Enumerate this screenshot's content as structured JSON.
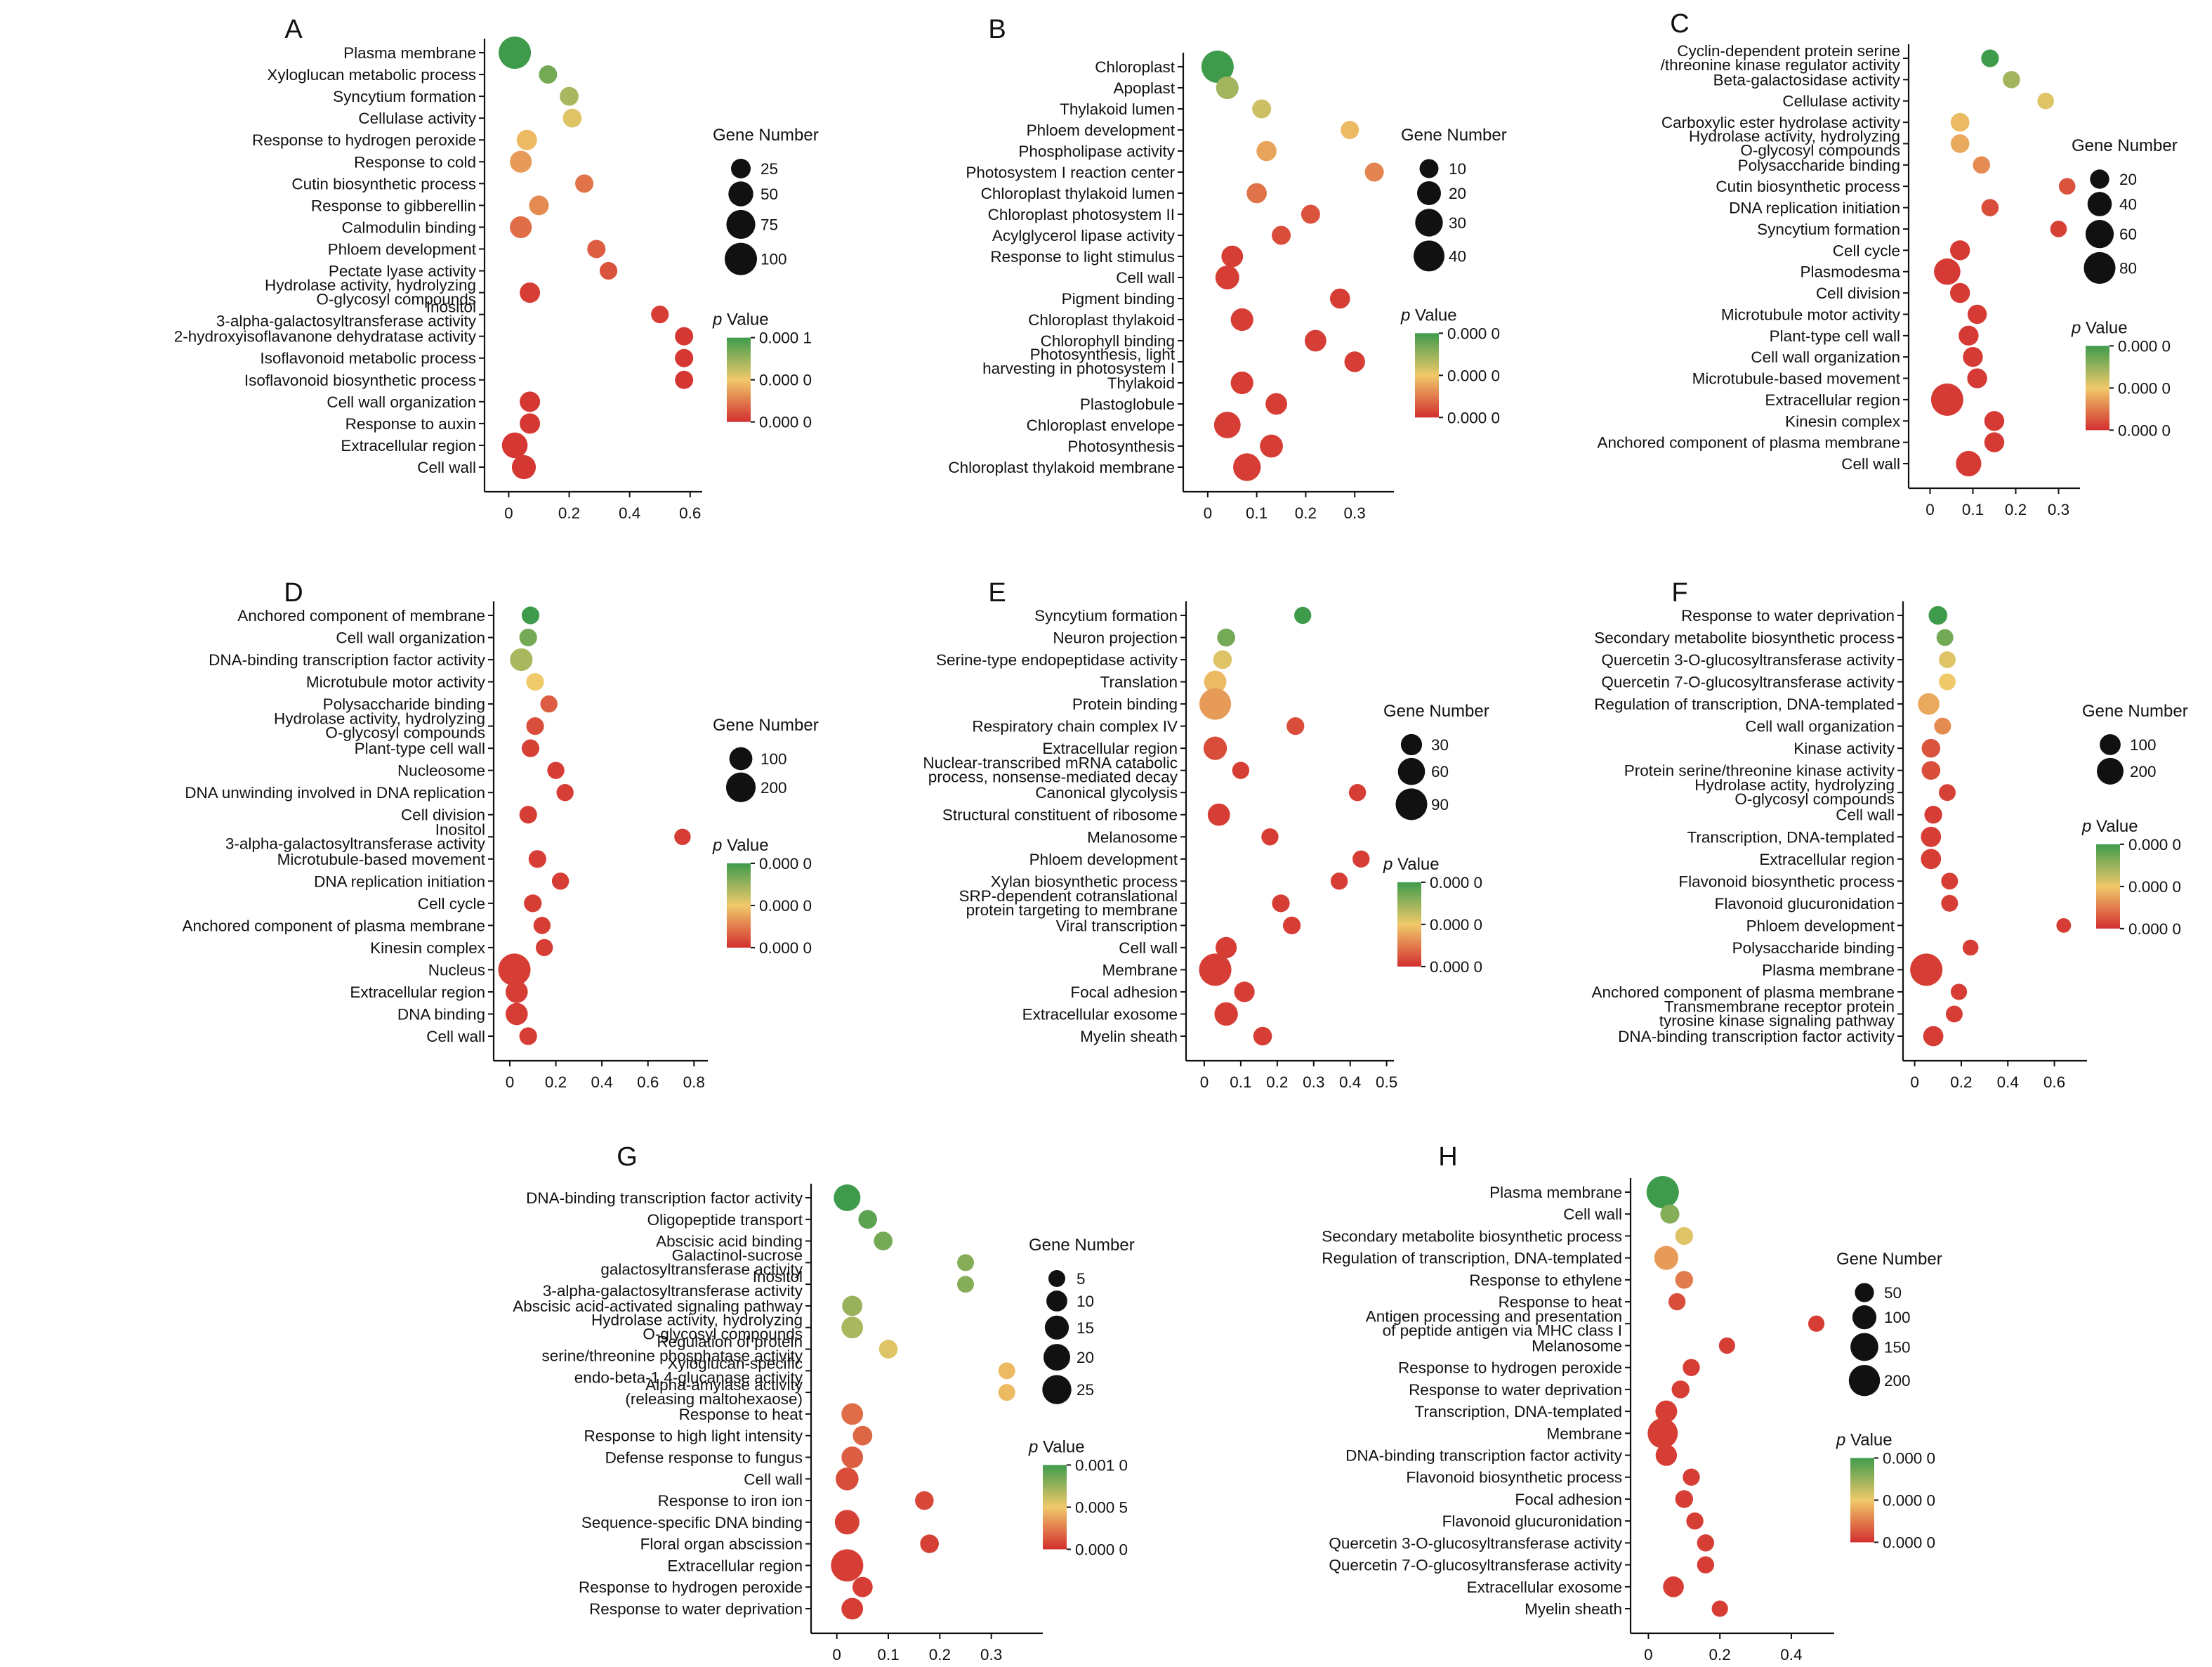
{
  "figure": {
    "colors": {
      "low_p": "#d32f2f",
      "mid_p": "#f0c96a",
      "high_p": "#3f9b4c",
      "axis": "#111111"
    },
    "legend_size_title": "Gene Number",
    "legend_p_prefix": "p",
    "legend_p_suffix": " Value"
  },
  "chart_data": [
    {
      "type": "scatter",
      "panel": "A",
      "categories": [
        "Plasma membrane",
        "Xyloglucan metabolic process",
        "Syncytium formation",
        "Cellulase activity",
        "Response to hydrogen peroxide",
        "Response to cold",
        "Cutin biosynthetic process",
        "Response to gibberellin",
        "Calmodulin binding",
        "Phloem development",
        "Pectate lyase activity",
        "Hydrolase activity, hydrolyzing O-glycosyl compounds",
        "Inositol 3-alpha-galactosyltransferase activity",
        "2-hydroxyisoflavanone dehydratase activity",
        "Isoflavonoid metabolic process",
        "Isoflavonoid biosynthetic process",
        "Cell wall organization",
        "Response to auxin",
        "Extracellular region",
        "Cell wall"
      ],
      "x": [
        0.02,
        0.13,
        0.2,
        0.21,
        0.06,
        0.04,
        0.25,
        0.1,
        0.04,
        0.29,
        0.33,
        0.07,
        0.5,
        0.58,
        0.58,
        0.58,
        0.07,
        0.07,
        0.02,
        0.05
      ],
      "gene_number": [
        100,
        20,
        22,
        22,
        28,
        35,
        20,
        25,
        35,
        20,
        18,
        28,
        18,
        20,
        20,
        20,
        28,
        28,
        55,
        45
      ],
      "p_fraction": [
        1.0,
        0.85,
        0.7,
        0.55,
        0.45,
        0.35,
        0.22,
        0.3,
        0.2,
        0.15,
        0.12,
        0.05,
        0.05,
        0.03,
        0.03,
        0.03,
        0.03,
        0.03,
        0.03,
        0.03
      ],
      "xticks": [
        "0",
        "0.2",
        "0.4",
        "0.6"
      ],
      "xlim": [
        -0.08,
        0.64
      ],
      "size_legend": [
        "25",
        "50",
        "75",
        "100"
      ],
      "size_legend_values": [
        25,
        50,
        75,
        100
      ],
      "p_legend": [
        "0.000 1",
        "0.000 0",
        "0.000 0"
      ]
    },
    {
      "type": "scatter",
      "panel": "B",
      "categories": [
        "Chloroplast",
        "Apoplast",
        "Thylakoid lumen",
        "Phloem development",
        "Phospholipase activity",
        "Photosystem I reaction center",
        "Chloroplast thylakoid lumen",
        "Chloroplast photosystem II",
        "Acylglycerol lipase activity",
        "Response to light stimulus",
        "Cell wall",
        "Pigment binding",
        "Chloroplast thylakoid",
        "Chlorophyll binding",
        "Photosynthesis, light harvesting in photosystem I",
        "Thylakoid",
        "Plastoglobule",
        "Chloroplast envelope",
        "Photosynthesis",
        "Chloroplast thylakoid membrane"
      ],
      "x": [
        0.02,
        0.04,
        0.11,
        0.29,
        0.12,
        0.34,
        0.1,
        0.21,
        0.15,
        0.05,
        0.04,
        0.27,
        0.07,
        0.22,
        0.3,
        0.07,
        0.14,
        0.04,
        0.13,
        0.08
      ],
      "gene_number": [
        45,
        17,
        10,
        9,
        12,
        10,
        12,
        10,
        10,
        15,
        20,
        12,
        17,
        15,
        13,
        17,
        15,
        27,
        18,
        30
      ],
      "p_fraction": [
        1.0,
        0.72,
        0.6,
        0.45,
        0.38,
        0.28,
        0.22,
        0.12,
        0.1,
        0.05,
        0.05,
        0.05,
        0.05,
        0.05,
        0.05,
        0.05,
        0.05,
        0.05,
        0.05,
        0.05
      ],
      "xticks": [
        "0",
        "0.1",
        "0.2",
        "0.3"
      ],
      "xlim": [
        -0.05,
        0.38
      ],
      "size_legend": [
        "10",
        "20",
        "30",
        "40"
      ],
      "size_legend_values": [
        10,
        20,
        30,
        40
      ],
      "p_legend": [
        "0.000 0",
        "0.000 0",
        "0.000 0"
      ]
    },
    {
      "type": "scatter",
      "panel": "C",
      "categories": [
        "Cyclin-dependent protein serine /threonine kinase regulator activity",
        "Beta-galactosidase activity",
        "Cellulase activity",
        "Carboxylic ester hydrolase activity",
        "Hydrolase activity, hydrolyzing O-glycosyl compounds",
        "Polysaccharide binding",
        "Cutin biosynthetic process",
        "DNA replication initiation",
        "Syncytium formation",
        "Cell cycle",
        "Plasmodesma",
        "Cell division",
        "Microtubule motor activity",
        "Plant-type cell wall",
        "Cell wall organization",
        "Microtubule-based movement",
        "Extracellular region",
        "Kinesin complex",
        "Anchored component of plasma membrane",
        "Cell wall"
      ],
      "x": [
        0.14,
        0.19,
        0.27,
        0.07,
        0.07,
        0.12,
        0.32,
        0.14,
        0.3,
        0.07,
        0.04,
        0.07,
        0.11,
        0.09,
        0.1,
        0.11,
        0.04,
        0.15,
        0.15,
        0.09
      ],
      "gene_number": [
        15,
        14,
        12,
        18,
        18,
        14,
        12,
        14,
        12,
        22,
        50,
        22,
        20,
        22,
        22,
        22,
        85,
        22,
        22,
        45
      ],
      "p_fraction": [
        1.0,
        0.72,
        0.55,
        0.45,
        0.4,
        0.3,
        0.12,
        0.1,
        0.06,
        0.04,
        0.04,
        0.04,
        0.04,
        0.04,
        0.04,
        0.04,
        0.04,
        0.04,
        0.04,
        0.04
      ],
      "xticks": [
        "0",
        "0.1",
        "0.2",
        "0.3"
      ],
      "xlim": [
        -0.05,
        0.35
      ],
      "size_legend": [
        "20",
        "40",
        "60",
        "80"
      ],
      "size_legend_values": [
        20,
        40,
        60,
        80
      ],
      "p_legend": [
        "0.000 0",
        "0.000 0",
        "0.000 0"
      ]
    },
    {
      "type": "scatter",
      "panel": "D",
      "categories": [
        "Anchored component of membrane",
        "Cell wall organization",
        "DNA-binding transcription factor activity",
        "Microtubule motor activity",
        "Polysaccharide binding",
        "Hydrolase activity, hydrolyzing O-glycosyl compounds",
        "Plant-type cell wall",
        "Nucleosome",
        "DNA unwinding involved in DNA replication",
        "Cell division",
        "Inositol 3-alpha-galactosyltransferase activity",
        "Microtubule-based movement",
        "DNA replication initiation",
        "Cell cycle",
        "Anchored component of plasma membrane",
        "Kinesin complex",
        "Nucleus",
        "Extracellular region",
        "DNA binding",
        "Cell wall"
      ],
      "x": [
        0.09,
        0.08,
        0.05,
        0.11,
        0.17,
        0.11,
        0.09,
        0.2,
        0.24,
        0.08,
        0.75,
        0.12,
        0.22,
        0.1,
        0.14,
        0.15,
        0.02,
        0.03,
        0.03,
        0.08
      ],
      "gene_number": [
        45,
        45,
        95,
        45,
        40,
        45,
        45,
        40,
        40,
        45,
        35,
        45,
        40,
        45,
        40,
        40,
        250,
        90,
        90,
        45
      ],
      "p_fraction": [
        1.0,
        0.85,
        0.7,
        0.5,
        0.15,
        0.1,
        0.06,
        0.05,
        0.05,
        0.05,
        0.05,
        0.05,
        0.05,
        0.05,
        0.05,
        0.05,
        0.05,
        0.05,
        0.05,
        0.05
      ],
      "xticks": [
        "0",
        "0.2",
        "0.4",
        "0.6",
        "0.8"
      ],
      "xlim": [
        -0.07,
        0.86
      ],
      "size_legend": [
        "100",
        "200"
      ],
      "size_legend_values": [
        100,
        200
      ],
      "p_legend": [
        "0.000 0",
        "0.000 0",
        "0.000 0"
      ]
    },
    {
      "type": "scatter",
      "panel": "E",
      "categories": [
        "Syncytium formation",
        "Neuron projection",
        "Serine-type endopeptidase activity",
        "Translation",
        "Protein binding",
        "Respiratory chain complex IV",
        "Extracellular region",
        "Nuclear-transcribed mRNA catabolic process, nonsense-mediated decay",
        "Canonical glycolysis",
        "Structural constituent of ribosome",
        "Melanosome",
        "Phloem development",
        "Xylan biosynthetic process",
        "SRP-dependent cotranslational protein targeting to membrane",
        "Viral transcription",
        "Cell wall",
        "Membrane",
        "Focal adhesion",
        "Extracellular exosome",
        "Myelin sheath"
      ],
      "x": [
        0.27,
        0.06,
        0.05,
        0.03,
        0.03,
        0.25,
        0.03,
        0.1,
        0.42,
        0.04,
        0.18,
        0.43,
        0.37,
        0.21,
        0.24,
        0.06,
        0.03,
        0.11,
        0.06,
        0.16
      ],
      "gene_number": [
        15,
        18,
        20,
        35,
        90,
        17,
        40,
        15,
        15,
        35,
        15,
        15,
        15,
        17,
        17,
        30,
        95,
        27,
        40,
        20
      ],
      "p_fraction": [
        1.0,
        0.85,
        0.55,
        0.45,
        0.35,
        0.1,
        0.1,
        0.05,
        0.05,
        0.05,
        0.05,
        0.05,
        0.05,
        0.05,
        0.05,
        0.05,
        0.05,
        0.05,
        0.05,
        0.05
      ],
      "xticks": [
        "0",
        "0.1",
        "0.2",
        "0.3",
        "0.4",
        "0.5"
      ],
      "xlim": [
        -0.05,
        0.52
      ],
      "size_legend": [
        "30",
        "60",
        "90"
      ],
      "size_legend_values": [
        30,
        60,
        90
      ],
      "p_legend": [
        "0.000 0",
        "0.000 0",
        "0.000 0"
      ]
    },
    {
      "type": "scatter",
      "panel": "F",
      "categories": [
        "Response to water deprivation",
        "Secondary metabolite biosynthetic process",
        "Quercetin 3-O-glucosyltransferase activity",
        "Quercetin 7-O-glucosyltransferase activity",
        "Regulation of transcription, DNA-templated",
        "Cell wall organization",
        "Kinase activity",
        "Protein serine/threonine kinase activity",
        "Hydrolase actity, hydrolyzing O-glycosyl compounds",
        "Cell wall",
        "Transcription, DNA-templated",
        "Extracellular region",
        "Flavonoid biosynthetic process",
        "Flavonoid glucuronidation",
        "Phloem development",
        "Polysaccharide binding",
        "Plasma membrane",
        "Anchored component of plasma membrane",
        "Transmembrane receptor protein tyrosine kinase signaling pathway",
        "DNA-binding transcription factor activity"
      ],
      "x": [
        0.1,
        0.13,
        0.14,
        0.14,
        0.06,
        0.12,
        0.07,
        0.07,
        0.14,
        0.08,
        0.07,
        0.07,
        0.15,
        0.15,
        0.64,
        0.24,
        0.05,
        0.19,
        0.17,
        0.08
      ],
      "gene_number": [
        70,
        50,
        50,
        50,
        110,
        50,
        70,
        70,
        50,
        60,
        90,
        90,
        50,
        50,
        30,
        40,
        330,
        45,
        50,
        90
      ],
      "p_fraction": [
        1.0,
        0.85,
        0.55,
        0.5,
        0.4,
        0.3,
        0.12,
        0.1,
        0.06,
        0.05,
        0.05,
        0.05,
        0.05,
        0.05,
        0.05,
        0.05,
        0.05,
        0.05,
        0.05,
        0.05
      ],
      "xticks": [
        "0",
        "0.2",
        "0.4",
        "0.6"
      ],
      "xlim": [
        -0.05,
        0.74
      ],
      "size_legend": [
        "100",
        "200"
      ],
      "size_legend_values": [
        100,
        200
      ],
      "p_legend": [
        "0.000 0",
        "0.000 0",
        "0.000 0"
      ]
    },
    {
      "type": "scatter",
      "panel": "G",
      "categories": [
        "DNA-binding transcription factor activity",
        "Oligopeptide transport",
        "Abscisic acid binding",
        "Galactinol-sucrose galactosyltransferase activity",
        "Inositol 3-alpha-galactosyltransferase activity",
        "Abscisic acid-activated signaling pathway",
        "Hydrolase activity, hydrolyzing O-glycosyl compounds",
        "Regulation of protein serine/threonine phosphatase activity",
        "Xyloglucan-specific endo-beta-1,4-glucanase activity",
        "Alpha-amylase activity (releasing maltohexaose)",
        "Response to heat",
        "Response to high light intensity",
        "Defense response to fungus",
        "Cell wall",
        "Response to iron ion",
        "Sequence-specific DNA binding",
        "Floral organ abscission",
        "Extracellular region",
        "Response to hydrogen peroxide",
        "Response to water deprivation"
      ],
      "x": [
        0.02,
        0.06,
        0.09,
        0.25,
        0.25,
        0.03,
        0.03,
        0.1,
        0.33,
        0.33,
        0.03,
        0.05,
        0.03,
        0.02,
        0.17,
        0.02,
        0.18,
        0.02,
        0.05,
        0.03
      ],
      "gene_number": [
        20,
        7,
        7,
        5,
        5,
        9,
        11,
        7,
        5,
        5,
        11,
        8,
        11,
        13,
        7,
        16,
        7,
        33,
        9,
        11
      ],
      "p_fraction": [
        1.0,
        0.92,
        0.85,
        0.8,
        0.8,
        0.75,
        0.7,
        0.55,
        0.45,
        0.45,
        0.2,
        0.18,
        0.15,
        0.1,
        0.08,
        0.06,
        0.06,
        0.05,
        0.05,
        0.05
      ],
      "xticks": [
        "0",
        "0.1",
        "0.2",
        "0.3"
      ],
      "xlim": [
        -0.05,
        0.4
      ],
      "size_legend": [
        "5",
        "10",
        "15",
        "20",
        "25"
      ],
      "size_legend_values": [
        5,
        10,
        15,
        20,
        25
      ],
      "p_legend": [
        "0.001 0",
        "0.000 5",
        "0.000 0"
      ]
    },
    {
      "type": "scatter",
      "panel": "H",
      "categories": [
        "Plasma membrane",
        "Cell wall",
        "Secondary metabolite biosynthetic process",
        "Regulation of transcription, DNA-templated",
        "Response to ethylene",
        "Response to heat",
        "Antigen processing and presentation of peptide antigen via MHC class I",
        "Melanosome",
        "Response to hydrogen peroxide",
        "Response to water deprivation",
        "Transcription, DNA-templated",
        "Membrane",
        "DNA-binding transcription factor activity",
        "Flavonoid biosynthetic process",
        "Focal adhesion",
        "Flavonoid glucuronidation",
        "Quercetin 3-O-glucosyltransferase activity",
        "Quercetin 7-O-glucosyltransferase activity",
        "Extracellular exosome",
        "Myelin sheath"
      ],
      "x": [
        0.04,
        0.06,
        0.1,
        0.05,
        0.1,
        0.08,
        0.47,
        0.22,
        0.12,
        0.09,
        0.05,
        0.04,
        0.05,
        0.12,
        0.1,
        0.13,
        0.16,
        0.16,
        0.07,
        0.2
      ],
      "gene_number": [
        220,
        50,
        40,
        100,
        40,
        35,
        30,
        30,
        35,
        40,
        75,
        185,
        70,
        35,
        40,
        35,
        35,
        35,
        65,
        30
      ],
      "p_fraction": [
        1.0,
        0.8,
        0.55,
        0.35,
        0.25,
        0.1,
        0.05,
        0.05,
        0.05,
        0.05,
        0.05,
        0.05,
        0.05,
        0.05,
        0.05,
        0.05,
        0.05,
        0.05,
        0.05,
        0.05
      ],
      "xticks": [
        "0",
        "0.2",
        "0.4"
      ],
      "xlim": [
        -0.05,
        0.52
      ],
      "size_legend": [
        "50",
        "100",
        "150",
        "200"
      ],
      "size_legend_values": [
        50,
        100,
        150,
        200
      ],
      "p_legend": [
        "0.000 0",
        "0.000 0",
        "0.000 0"
      ]
    }
  ]
}
